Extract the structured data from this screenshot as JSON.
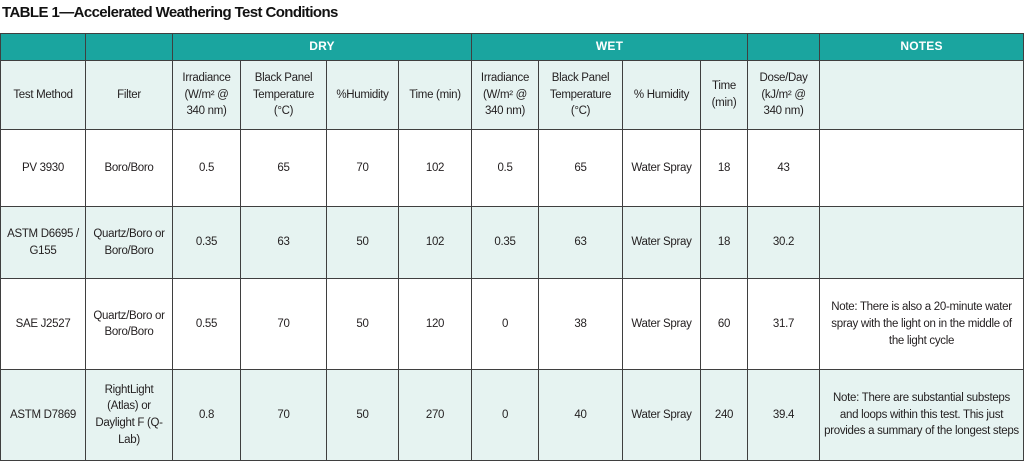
{
  "title": "TABLE 1—Accelerated Weathering Test Conditions",
  "groups": {
    "dry": "DRY",
    "wet": "WET",
    "notes": "NOTES"
  },
  "columns": {
    "test_method": "Test Method",
    "filter": "Filter",
    "dry_irradiance": "Irradiance (W/m² @ 340 nm)",
    "dry_black_panel": "Black Panel Temperature (°C)",
    "dry_humidity": "%Humidity",
    "dry_time": "Time (min)",
    "wet_irradiance": "Irradiance (W/m² @ 340 nm)",
    "wet_black_panel": "Black Panel Temperature (°C)",
    "wet_humidity": "% Humidity",
    "wet_time": "Time (min)",
    "dose_day": "Dose/Day (kJ/m² @ 340 nm)",
    "notes": ""
  },
  "rows": [
    {
      "test_method": "PV 3930",
      "filter": "Boro/Boro",
      "dry_irradiance": "0.5",
      "dry_black_panel": "65",
      "dry_humidity": "70",
      "dry_time": "102",
      "wet_irradiance": "0.5",
      "wet_black_panel": "65",
      "wet_humidity": "Water Spray",
      "wet_time": "18",
      "dose_day": "43",
      "notes": ""
    },
    {
      "test_method": "ASTM D6695 / G155",
      "filter": "Quartz/Boro or Boro/Boro",
      "dry_irradiance": "0.35",
      "dry_black_panel": "63",
      "dry_humidity": "50",
      "dry_time": "102",
      "wet_irradiance": "0.35",
      "wet_black_panel": "63",
      "wet_humidity": "Water Spray",
      "wet_time": "18",
      "dose_day": "30.2",
      "notes": ""
    },
    {
      "test_method": "SAE J2527",
      "filter": "Quartz/Boro or Boro/Boro",
      "dry_irradiance": "0.55",
      "dry_black_panel": "70",
      "dry_humidity": "50",
      "dry_time": "120",
      "wet_irradiance": "0",
      "wet_black_panel": "38",
      "wet_humidity": "Water Spray",
      "wet_time": "60",
      "dose_day": "31.7",
      "notes": "Note: There is also a 20-minute water spray with the light on in the middle of the light cycle"
    },
    {
      "test_method": "ASTM D7869",
      "filter": "RightLight (Atlas) or Daylight F (Q-Lab)",
      "dry_irradiance": "0.8",
      "dry_black_panel": "70",
      "dry_humidity": "50",
      "dry_time": "270",
      "wet_irradiance": "0",
      "wet_black_panel": "40",
      "wet_humidity": "Water Spray",
      "wet_time": "240",
      "dose_day": "39.4",
      "notes": "Note: There are substantial substeps and loops within this test. This just provides a summary of the longest steps"
    }
  ],
  "colors": {
    "header_teal": "#1aa59f",
    "light_teal": "#e6f3f1",
    "border": "#3f3f3f"
  }
}
